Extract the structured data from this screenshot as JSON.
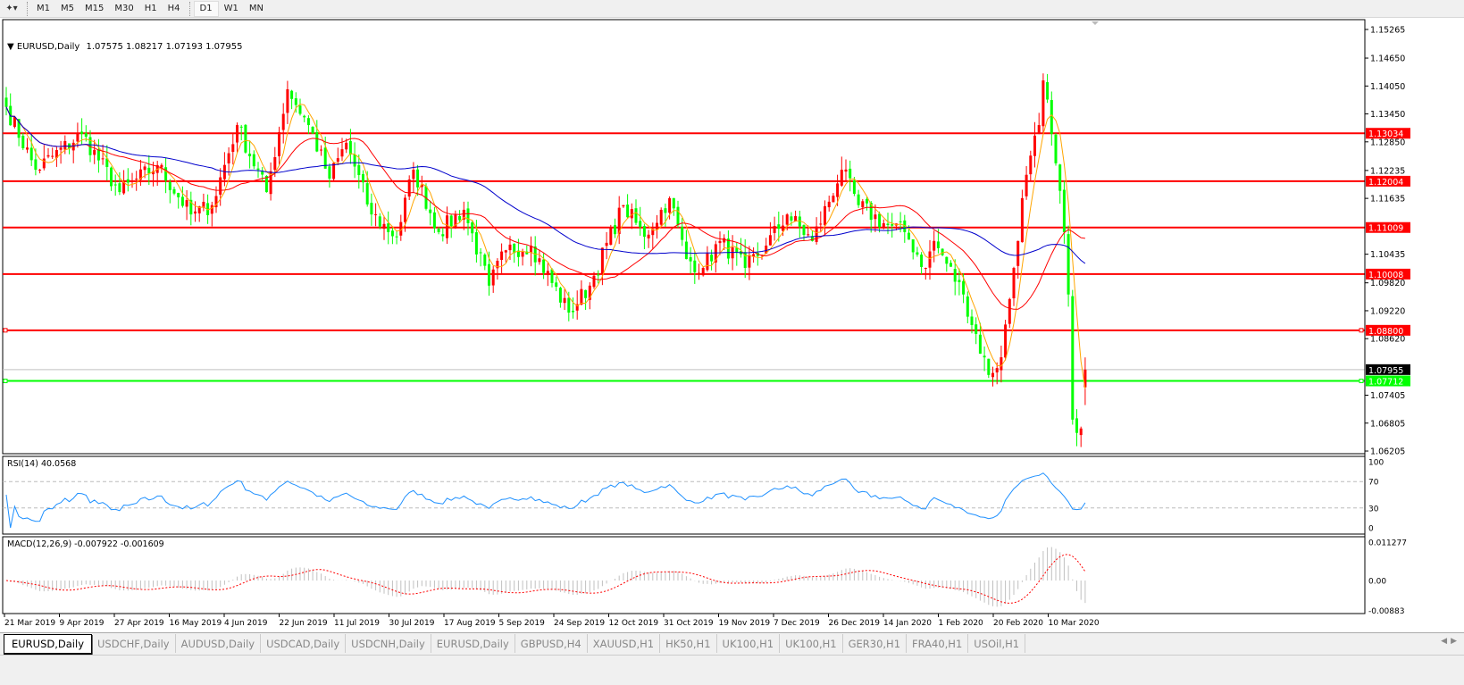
{
  "toolbar": {
    "timeframes": [
      "M1",
      "M5",
      "M15",
      "M30",
      "H1",
      "H4",
      "D1",
      "W1",
      "MN"
    ],
    "active": "D1"
  },
  "header": {
    "symbol": "EURUSD,Daily",
    "ohlc": "1.07575 1.08217 1.07193 1.07955"
  },
  "rsi": {
    "label": "RSI(14) 40.0568",
    "levels": [
      "100",
      "70",
      "30",
      "0"
    ]
  },
  "macd": {
    "label": "MACD(12,26,9) -0.007922 -0.001609",
    "axis": [
      "0.011277",
      "0.00",
      "-0.00883"
    ]
  },
  "price_axis": [
    "1.15265",
    "1.14650",
    "1.14050",
    "1.13450",
    "1.12850",
    "1.12235",
    "1.11635",
    "1.10435",
    "1.09820",
    "1.09220",
    "1.08620",
    "1.07405",
    "1.06805",
    "1.06205"
  ],
  "levels": [
    {
      "price": "1.13034",
      "color": "#ff0000"
    },
    {
      "price": "1.12004",
      "color": "#ff0000"
    },
    {
      "price": "1.11009",
      "color": "#ff0000"
    },
    {
      "price": "1.10008",
      "color": "#ff0000"
    },
    {
      "price": "1.08800",
      "color": "#ff0000"
    },
    {
      "price": "1.07712",
      "color": "#00ff00"
    }
  ],
  "current_price": "1.07955",
  "dates": [
    "21 Mar 2019",
    "9 Apr 2019",
    "27 Apr 2019",
    "16 May 2019",
    "4 Jun 2019",
    "22 Jun 2019",
    "11 Jul 2019",
    "30 Jul 2019",
    "17 Aug 2019",
    "5 Sep 2019",
    "24 Sep 2019",
    "12 Oct 2019",
    "31 Oct 2019",
    "19 Nov 2019",
    "7 Dec 2019",
    "26 Dec 2019",
    "14 Jan 2020",
    "1 Feb 2020",
    "20 Feb 2020",
    "10 Mar 2020"
  ],
  "tabs": [
    "EURUSD,Daily",
    "USDCHF,Daily",
    "AUDUSD,Daily",
    "USDCAD,Daily",
    "USDCNH,Daily",
    "EURUSD,Daily",
    "GBPUSD,H4",
    "XAUUSD,H1",
    "HK50,H1",
    "UK100,H1",
    "UK100,H1",
    "GER30,H1",
    "FRA40,H1",
    "USOil,H1"
  ],
  "colors": {
    "bull": "#ff0000",
    "bear": "#00ff00",
    "ma_fast": "#ffa500",
    "ma_mid": "#ff0000",
    "ma_slow": "#0000cc",
    "rsi": "#1e90ff",
    "macd_signal": "#ff0000",
    "macd_hist": "#c0c0c0"
  },
  "chart_data": {
    "type": "candlestick",
    "symbol": "EURUSD",
    "timeframe": "Daily",
    "ylim": [
      1.06205,
      1.15265
    ],
    "approx_close_path": [
      [
        0,
        1.136
      ],
      [
        7,
        1.1225
      ],
      [
        18,
        1.1302
      ],
      [
        27,
        1.1177
      ],
      [
        36,
        1.1235
      ],
      [
        44,
        1.1129
      ],
      [
        49,
        1.1149
      ],
      [
        55,
        1.1321
      ],
      [
        62,
        1.1177
      ],
      [
        67,
        1.1398
      ],
      [
        72,
        1.1321
      ],
      [
        77,
        1.1206
      ],
      [
        81,
        1.1283
      ],
      [
        87,
        1.1129
      ],
      [
        93,
        1.1081
      ],
      [
        97,
        1.1225
      ],
      [
        103,
        1.1091
      ],
      [
        109,
        1.1139
      ],
      [
        115,
        1.0976
      ],
      [
        119,
        1.1052
      ],
      [
        125,
        1.1062
      ],
      [
        134,
        1.0918
      ],
      [
        139,
        1.0976
      ],
      [
        147,
        1.1149
      ],
      [
        152,
        1.1081
      ],
      [
        158,
        1.1164
      ],
      [
        162,
        1.1033
      ],
      [
        166,
        1.1014
      ],
      [
        170,
        1.1072
      ],
      [
        176,
        1.1014
      ],
      [
        181,
        1.1062
      ],
      [
        186,
        1.1129
      ],
      [
        192,
        1.1072
      ],
      [
        199,
        1.1225
      ],
      [
        203,
        1.1149
      ],
      [
        209,
        1.111
      ],
      [
        214,
        1.1091
      ],
      [
        219,
        1.1014
      ],
      [
        221,
        1.1072
      ],
      [
        228,
        1.0957
      ],
      [
        234,
        1.0784
      ],
      [
        237,
        1.0822
      ],
      [
        240,
        1.1014
      ],
      [
        242,
        1.1164
      ],
      [
        246,
        1.1321
      ],
      [
        247,
        1.1417
      ],
      [
        249,
        1.1302
      ],
      [
        252,
        1.1091
      ],
      [
        253,
        1.0957
      ],
      [
        254,
        1.0688
      ],
      [
        256,
        1.0669
      ],
      [
        257,
        1.07955
      ]
    ]
  }
}
